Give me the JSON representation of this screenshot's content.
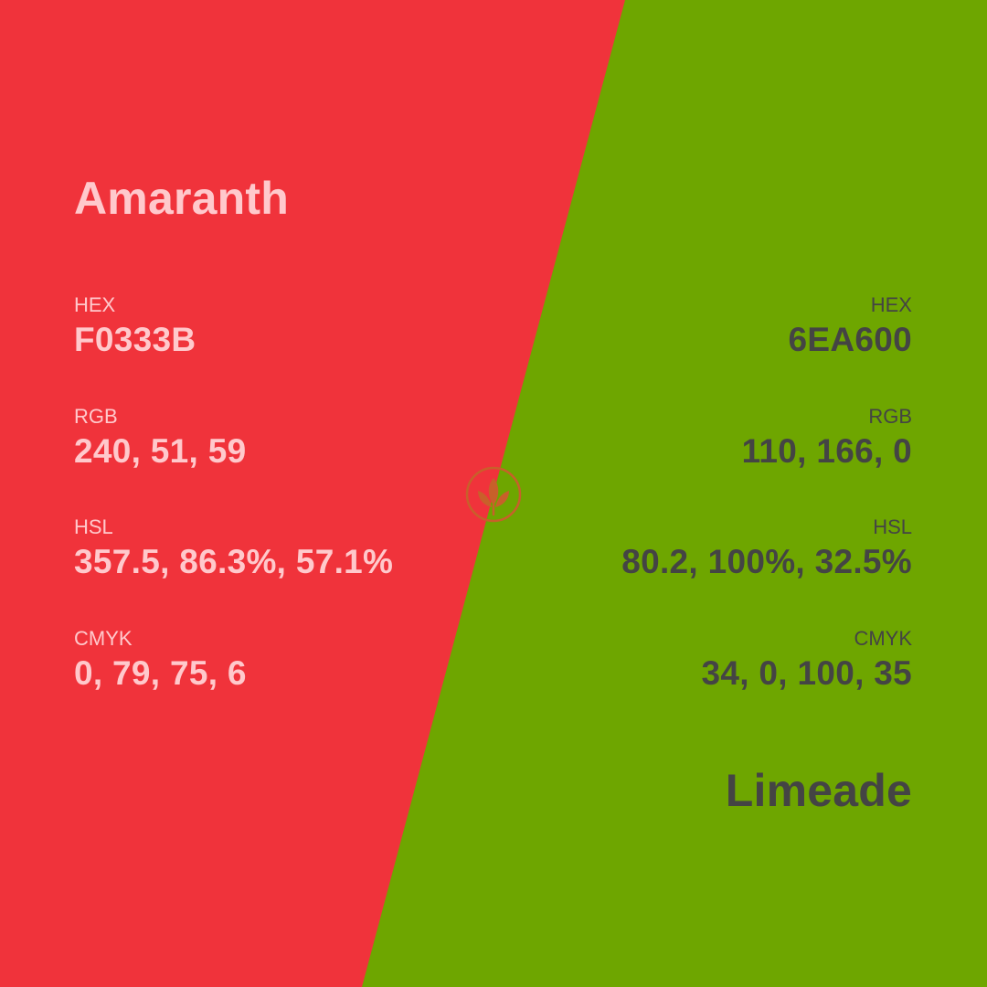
{
  "colors": {
    "left_background": "#F0333B",
    "right_background": "#6EA600",
    "left_text": "#FFC9CC",
    "right_text": "#444444",
    "logo": "#C8602A"
  },
  "left": {
    "name": "Amaranth",
    "fields": [
      {
        "label": "HEX",
        "value": "F0333B"
      },
      {
        "label": "RGB",
        "value": "240, 51, 59"
      },
      {
        "label": "HSL",
        "value": "357.5, 86.3%, 57.1%"
      },
      {
        "label": "CMYK",
        "value": "0, 79, 75, 6"
      }
    ]
  },
  "right": {
    "name": "Limeade",
    "fields": [
      {
        "label": "HEX",
        "value": "6EA600"
      },
      {
        "label": "RGB",
        "value": "110, 166, 0"
      },
      {
        "label": "HSL",
        "value": "80.2, 100%, 32.5%"
      },
      {
        "label": "CMYK",
        "value": "34, 0, 100, 35"
      }
    ]
  },
  "logo": {
    "icon": "leaf-logo-icon"
  }
}
